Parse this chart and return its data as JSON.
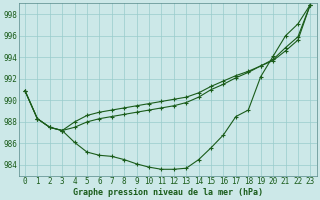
{
  "xlabel": "Graphe pression niveau de la mer (hPa)",
  "ylim": [
    983.0,
    999.0
  ],
  "xlim": [
    -0.5,
    23.5
  ],
  "yticks": [
    984,
    986,
    988,
    990,
    992,
    994,
    996,
    998
  ],
  "xticks": [
    0,
    1,
    2,
    3,
    4,
    5,
    6,
    7,
    8,
    9,
    10,
    11,
    12,
    13,
    14,
    15,
    16,
    17,
    18,
    19,
    20,
    21,
    22,
    23
  ],
  "bg_color": "#cce8e8",
  "grid_color": "#99cccc",
  "line_color": "#1a5c1a",
  "series1": [
    990.9,
    988.3,
    987.5,
    987.2,
    986.1,
    985.2,
    984.9,
    984.8,
    984.5,
    984.1,
    983.8,
    983.6,
    983.6,
    983.7,
    984.5,
    985.6,
    986.8,
    988.5,
    989.1,
    992.2,
    994.1,
    996.0,
    997.1,
    998.9
  ],
  "series2": [
    990.9,
    988.3,
    987.5,
    987.2,
    987.5,
    988.0,
    988.3,
    988.5,
    988.7,
    988.9,
    989.1,
    989.3,
    989.5,
    989.8,
    990.3,
    991.0,
    991.5,
    992.1,
    992.6,
    993.2,
    993.8,
    994.9,
    995.9,
    998.9
  ],
  "series3": [
    990.9,
    988.3,
    987.5,
    987.2,
    988.0,
    988.6,
    988.9,
    989.1,
    989.3,
    989.5,
    989.7,
    989.9,
    990.1,
    990.3,
    990.7,
    991.3,
    991.8,
    992.3,
    992.7,
    993.2,
    993.7,
    994.6,
    995.6,
    998.9
  ],
  "tick_fontsize": 5.5,
  "xlabel_fontsize": 6.0,
  "lw": 0.8,
  "marker_size": 3,
  "spine_color": "#558888"
}
